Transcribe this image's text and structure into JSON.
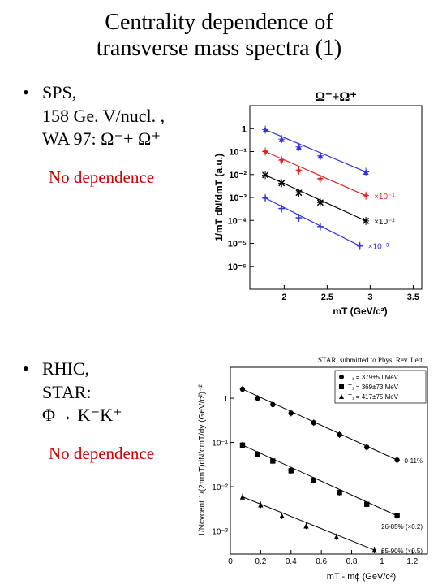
{
  "title_line1": "Centrality dependence of",
  "title_line2": "transverse mass spectra (1)",
  "sps": {
    "l1": "SPS,",
    "l2": "158 Ge. V/nucl. ,",
    "l3_prefix": "WA 97: ",
    "l3_sym": "Ω⁻+ Ω⁺",
    "nodep": "No dependence"
  },
  "rhic": {
    "l1": "RHIC,",
    "l2": "STAR:",
    "l3": "Φ→ K⁻K⁺",
    "nodep": "No dependence",
    "cite": "STAR, submitted to Phys. Rev. Lett."
  },
  "chart1": {
    "title": "Ω⁻+Ω⁺",
    "title_color": "#000000",
    "ylabel": "1/mT dN/dmT (a.u.)",
    "xlabel": "mT (GeV/c²)",
    "xlim": [
      1.6,
      3.6
    ],
    "xticks": [
      2,
      2.5,
      3,
      3.5
    ],
    "ylim": [
      1e-07,
      10
    ],
    "yticks": [
      1,
      0.1,
      0.01,
      0.001,
      0.0001,
      1e-05,
      1e-06
    ],
    "ytick_labels": [
      "1",
      "10⁻¹",
      "10⁻²",
      "10⁻³",
      "10⁻⁴",
      "10⁻⁵",
      "10⁻⁶"
    ],
    "series": [
      {
        "color": "#3333dd",
        "marker": "triangle",
        "scale_label": "",
        "points": [
          [
            1.78,
            0.9
          ],
          [
            1.97,
            0.35
          ],
          [
            2.17,
            0.16
          ],
          [
            2.42,
            0.065
          ],
          [
            2.95,
            0.013
          ]
        ]
      },
      {
        "color": "#dd2222",
        "marker": "star",
        "scale_label": "×10⁻¹",
        "points": [
          [
            1.78,
            0.1
          ],
          [
            1.97,
            0.042
          ],
          [
            2.17,
            0.015
          ],
          [
            2.42,
            0.0065
          ],
          [
            2.95,
            0.0012
          ]
        ]
      },
      {
        "color": "#000000",
        "marker": "cross",
        "scale_label": "×10⁻²",
        "points": [
          [
            1.78,
            0.0095
          ],
          [
            1.97,
            0.0042
          ],
          [
            2.17,
            0.0016
          ],
          [
            2.42,
            0.0006
          ],
          [
            2.95,
            9.5e-05
          ]
        ]
      },
      {
        "color": "#3333dd",
        "marker": "plus",
        "scale_label": "×10⁻³",
        "points": [
          [
            1.78,
            0.00094
          ],
          [
            1.97,
            0.00033
          ],
          [
            2.17,
            0.00013
          ],
          [
            2.42,
            5.4e-05
          ],
          [
            2.88,
            7.7e-06
          ]
        ]
      }
    ],
    "bg": "#ffffff",
    "border": "#000000",
    "fontsize_axis": 11
  },
  "chart2": {
    "ylabel": "1/Ncvcent 1/(2πmT)dN/dmT/dy (GeV/c²)⁻²",
    "xlabel": "mT - mϕ (GeV/c²)",
    "xlim": [
      0,
      1.3
    ],
    "xticks": [
      0,
      0.2,
      0.4,
      0.6,
      0.8,
      1,
      1.2
    ],
    "ylim": [
      0.0003,
      5
    ],
    "yticks": [
      1,
      0.1,
      0.01,
      0.001
    ],
    "ytick_labels": [
      "1",
      "10⁻¹",
      "10⁻²",
      "10⁻³"
    ],
    "legend": [
      {
        "label": "T₁ = 379±50 MeV",
        "marker": "circle"
      },
      {
        "label": "T₁ = 369±73 MeV",
        "marker": "square"
      },
      {
        "label": "T₁ = 417±75 MeV",
        "marker": "triangle"
      }
    ],
    "series": [
      {
        "color": "#000000",
        "marker": "circle",
        "scale_label": "0-11%",
        "points": [
          [
            0.08,
            1.6
          ],
          [
            0.18,
            1.0
          ],
          [
            0.28,
            0.72
          ],
          [
            0.4,
            0.46
          ],
          [
            0.55,
            0.28
          ],
          [
            0.72,
            0.15
          ],
          [
            0.9,
            0.078
          ],
          [
            1.1,
            0.04
          ]
        ]
      },
      {
        "color": "#000000",
        "marker": "square",
        "scale_label": "26-85% (×0.2)",
        "points": [
          [
            0.08,
            0.087
          ],
          [
            0.18,
            0.054
          ],
          [
            0.28,
            0.038
          ],
          [
            0.4,
            0.023
          ],
          [
            0.55,
            0.014
          ],
          [
            0.72,
            0.0074
          ],
          [
            0.9,
            0.004
          ],
          [
            1.1,
            0.0022
          ]
        ]
      },
      {
        "color": "#000000",
        "marker": "triangle",
        "scale_label": "85-90% (×0.5)",
        "points": [
          [
            0.08,
            0.0059
          ],
          [
            0.2,
            0.0039
          ],
          [
            0.34,
            0.0022
          ],
          [
            0.5,
            0.0013
          ],
          [
            0.7,
            0.00074
          ],
          [
            0.95,
            0.00037
          ]
        ]
      }
    ],
    "bg": "#ffffff",
    "border": "#000000",
    "fontsize_axis": 10
  }
}
